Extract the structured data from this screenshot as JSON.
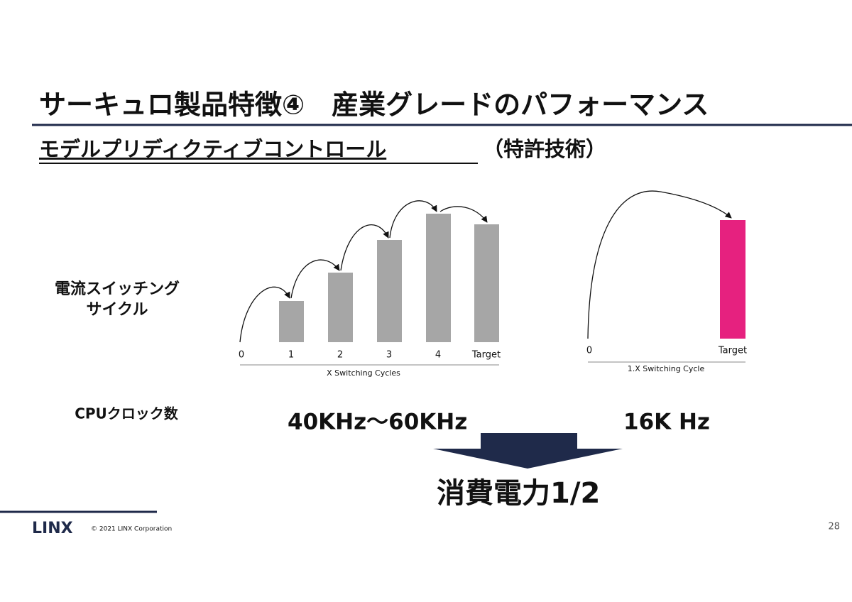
{
  "title": "サーキュロ製品特徴④　産業グレードのパフォーマンス",
  "subtitle": "モデルプリディクティブコントロール",
  "subtitle_note": "（特許技術）",
  "row_labels": {
    "cycle": [
      "電流スイッチング",
      "サイクル"
    ],
    "clock": "CPUクロック数"
  },
  "chart_left": {
    "categories": [
      "0",
      "1",
      "2",
      "3",
      "4",
      "Target"
    ],
    "axis_label": "X Switching Cycles",
    "clock": "40KHz～60KHz"
  },
  "chart_right": {
    "categories": [
      "0",
      "Target"
    ],
    "axis_label": "1.X Switching Cycle",
    "clock": "16K Hz"
  },
  "result": "消費電力1/2",
  "footer": {
    "logo": "LINX",
    "copyright": "© 2021 LINX Corporation",
    "page": "28"
  }
}
